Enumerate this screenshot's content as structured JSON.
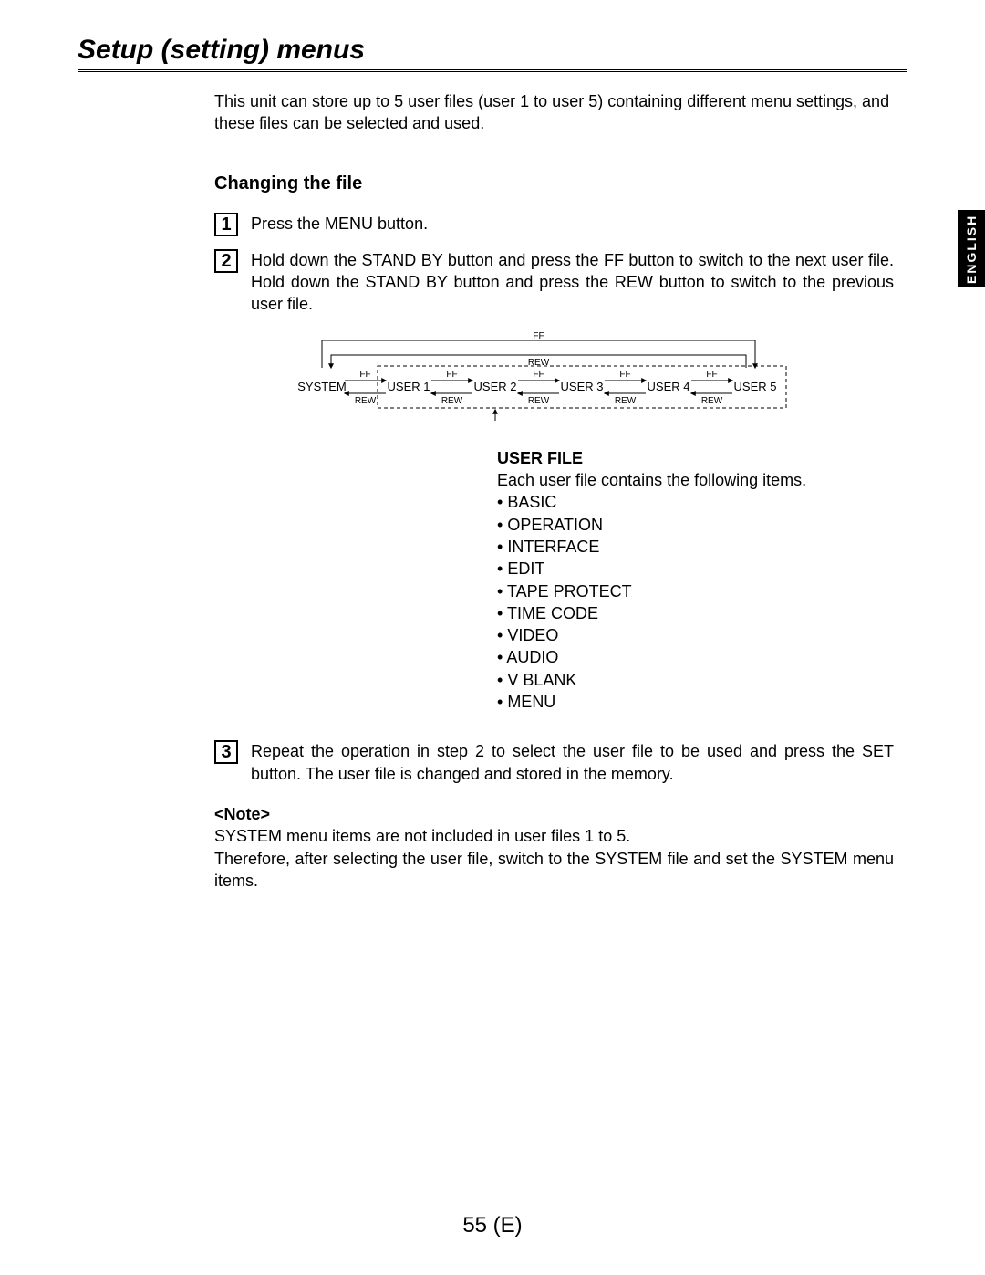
{
  "page_title": "Setup (setting) menus",
  "intro": "This unit can store up to 5 user files (user 1 to user 5) containing different menu settings, and these files can be selected and used.",
  "section_heading": "Changing the file",
  "steps": {
    "s1": {
      "num": "1",
      "text": "Press the MENU button."
    },
    "s2": {
      "num": "2",
      "text": "Hold down the STAND BY button and press the FF button to switch to the next user file. Hold down the STAND BY button and press the REW button to switch to the previous user file."
    },
    "s3": {
      "num": "3",
      "text": "Repeat the operation in step 2 to select the user file to be used and press the SET button. The user file is changed and stored in the memory."
    }
  },
  "diagram": {
    "nodes": [
      "SYSTEM",
      "USER 1",
      "USER 2",
      "USER 3",
      "USER 4",
      "USER 5"
    ],
    "ff_label": "FF",
    "rew_label": "REW",
    "stroke": "#000000"
  },
  "user_file": {
    "title": "USER FILE",
    "desc": "Each user file contains the following items.",
    "items": [
      "BASIC",
      "OPERATION",
      "INTERFACE",
      "EDIT",
      "TAPE PROTECT",
      "TIME CODE",
      "VIDEO",
      "AUDIO",
      "V BLANK",
      "MENU"
    ]
  },
  "note": {
    "title": "<Note>",
    "line1": "SYSTEM menu items are not included in user files 1 to 5.",
    "line2": "Therefore, after selecting the user file, switch to the SYSTEM file and set the SYSTEM menu items."
  },
  "side_tab": "ENGLISH",
  "page_number": "55 (E)"
}
